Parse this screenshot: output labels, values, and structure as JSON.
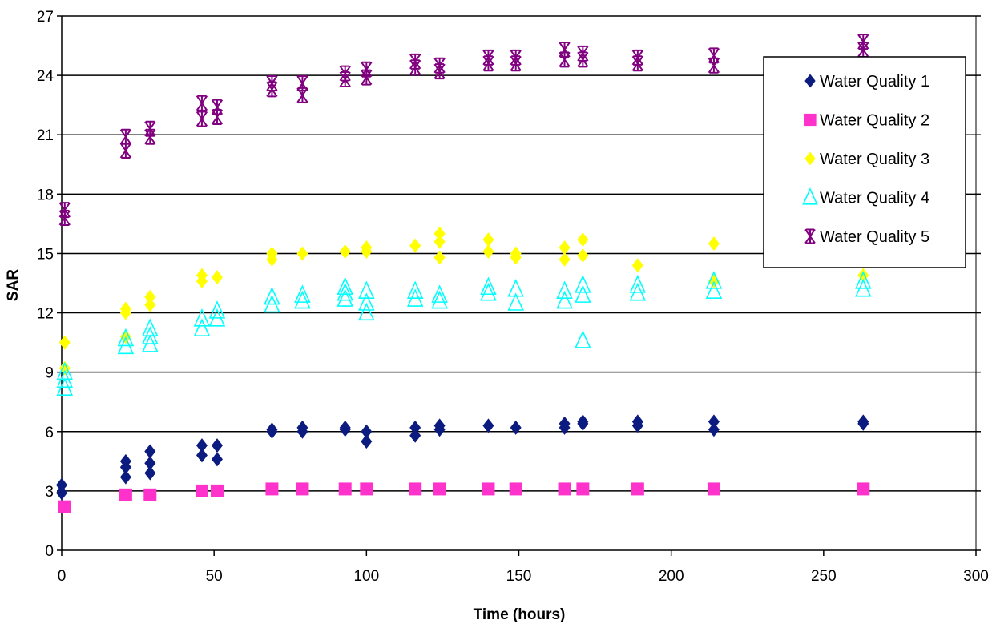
{
  "chart_data": {
    "type": "scatter",
    "title": "",
    "xlabel": "Time (hours)",
    "ylabel": "SAR",
    "xlim": [
      0,
      300
    ],
    "ylim": [
      0,
      27
    ],
    "xticks": [
      0,
      50,
      100,
      150,
      200,
      250,
      300
    ],
    "yticks": [
      0,
      3,
      6,
      9,
      12,
      15,
      18,
      21,
      24,
      27
    ],
    "grid": "horizontal",
    "legend_position": "top-right",
    "series": [
      {
        "name": "Water Quality 1",
        "marker": "diamond",
        "color": "#0B1B7F",
        "points": [
          [
            0,
            3.3
          ],
          [
            0,
            2.9
          ],
          [
            21,
            4.5
          ],
          [
            21,
            4.2
          ],
          [
            21,
            3.7
          ],
          [
            29,
            5.0
          ],
          [
            29,
            4.4
          ],
          [
            29,
            3.9
          ],
          [
            46,
            5.3
          ],
          [
            46,
            4.8
          ],
          [
            51,
            5.3
          ],
          [
            51,
            4.6
          ],
          [
            69,
            6.1
          ],
          [
            69,
            6.0
          ],
          [
            79,
            6.2
          ],
          [
            79,
            6.0
          ],
          [
            93,
            6.2
          ],
          [
            93,
            6.1
          ],
          [
            100,
            6.0
          ],
          [
            100,
            5.5
          ],
          [
            116,
            6.2
          ],
          [
            116,
            5.8
          ],
          [
            124,
            6.3
          ],
          [
            124,
            6.1
          ],
          [
            140,
            6.3
          ],
          [
            149,
            6.2
          ],
          [
            165,
            6.4
          ],
          [
            165,
            6.2
          ],
          [
            171,
            6.5
          ],
          [
            171,
            6.4
          ],
          [
            189,
            6.5
          ],
          [
            189,
            6.3
          ],
          [
            214,
            6.5
          ],
          [
            214,
            6.1
          ],
          [
            263,
            6.5
          ],
          [
            263,
            6.4
          ]
        ]
      },
      {
        "name": "Water Quality 2",
        "marker": "square",
        "color": "#FF33CC",
        "points": [
          [
            1,
            2.2
          ],
          [
            21,
            2.8
          ],
          [
            29,
            2.8
          ],
          [
            46,
            3.0
          ],
          [
            51,
            3.0
          ],
          [
            69,
            3.1
          ],
          [
            79,
            3.1
          ],
          [
            93,
            3.1
          ],
          [
            100,
            3.1
          ],
          [
            116,
            3.1
          ],
          [
            124,
            3.1
          ],
          [
            140,
            3.1
          ],
          [
            149,
            3.1
          ],
          [
            165,
            3.1
          ],
          [
            171,
            3.1
          ],
          [
            189,
            3.1
          ],
          [
            214,
            3.1
          ],
          [
            263,
            3.1
          ]
        ]
      },
      {
        "name": "Water Quality 3",
        "marker": "diamond",
        "color": "#FFFF00",
        "points": [
          [
            1,
            10.5
          ],
          [
            1,
            9.2
          ],
          [
            21,
            12.2
          ],
          [
            21,
            12.0
          ],
          [
            21,
            10.8
          ],
          [
            29,
            12.8
          ],
          [
            29,
            12.4
          ],
          [
            46,
            13.9
          ],
          [
            46,
            13.6
          ],
          [
            51,
            13.8
          ],
          [
            69,
            15.0
          ],
          [
            69,
            14.7
          ],
          [
            79,
            15.0
          ],
          [
            93,
            15.1
          ],
          [
            100,
            15.3
          ],
          [
            100,
            15.1
          ],
          [
            116,
            15.4
          ],
          [
            124,
            16.0
          ],
          [
            124,
            15.6
          ],
          [
            124,
            14.8
          ],
          [
            140,
            15.7
          ],
          [
            140,
            15.1
          ],
          [
            149,
            15.0
          ],
          [
            149,
            14.8
          ],
          [
            165,
            15.3
          ],
          [
            165,
            14.7
          ],
          [
            171,
            15.7
          ],
          [
            171,
            14.9
          ],
          [
            189,
            14.4
          ],
          [
            214,
            15.5
          ],
          [
            214,
            13.6
          ],
          [
            263,
            13.9
          ]
        ]
      },
      {
        "name": "Water Quality 4",
        "marker": "triangle",
        "color": "#00FFFF",
        "points": [
          [
            1,
            9.0
          ],
          [
            1,
            8.6
          ],
          [
            1,
            8.2
          ],
          [
            21,
            10.7
          ],
          [
            21,
            10.3
          ],
          [
            29,
            11.2
          ],
          [
            29,
            10.8
          ],
          [
            29,
            10.4
          ],
          [
            46,
            11.7
          ],
          [
            46,
            11.2
          ],
          [
            51,
            12.1
          ],
          [
            51,
            11.7
          ],
          [
            69,
            12.8
          ],
          [
            69,
            12.4
          ],
          [
            79,
            12.9
          ],
          [
            79,
            12.6
          ],
          [
            93,
            13.3
          ],
          [
            93,
            13.0
          ],
          [
            93,
            12.7
          ],
          [
            100,
            13.1
          ],
          [
            100,
            12.5
          ],
          [
            100,
            12.0
          ],
          [
            116,
            13.1
          ],
          [
            116,
            12.7
          ],
          [
            124,
            12.9
          ],
          [
            124,
            12.6
          ],
          [
            140,
            13.3
          ],
          [
            140,
            13.0
          ],
          [
            149,
            13.2
          ],
          [
            149,
            12.5
          ],
          [
            165,
            13.1
          ],
          [
            165,
            12.6
          ],
          [
            171,
            13.4
          ],
          [
            171,
            12.9
          ],
          [
            171,
            10.6
          ],
          [
            189,
            13.4
          ],
          [
            189,
            13.0
          ],
          [
            214,
            13.6
          ],
          [
            214,
            13.1
          ],
          [
            263,
            13.6
          ],
          [
            263,
            13.2
          ]
        ]
      },
      {
        "name": "Water Quality 5",
        "marker": "asterisk",
        "color": "#800080",
        "points": [
          [
            1,
            17.2
          ],
          [
            1,
            16.8
          ],
          [
            21,
            20.9
          ],
          [
            21,
            20.2
          ],
          [
            29,
            21.3
          ],
          [
            29,
            20.9
          ],
          [
            46,
            22.6
          ],
          [
            46,
            21.8
          ],
          [
            51,
            22.4
          ],
          [
            51,
            21.9
          ],
          [
            69,
            23.6
          ],
          [
            69,
            23.3
          ],
          [
            79,
            23.6
          ],
          [
            79,
            23.0
          ],
          [
            93,
            24.1
          ],
          [
            93,
            23.8
          ],
          [
            100,
            24.3
          ],
          [
            100,
            23.9
          ],
          [
            116,
            24.7
          ],
          [
            116,
            24.4
          ],
          [
            124,
            24.5
          ],
          [
            124,
            24.2
          ],
          [
            140,
            24.9
          ],
          [
            140,
            24.6
          ],
          [
            149,
            24.9
          ],
          [
            149,
            24.6
          ],
          [
            165,
            25.3
          ],
          [
            165,
            24.8
          ],
          [
            171,
            25.1
          ],
          [
            171,
            24.8
          ],
          [
            189,
            24.9
          ],
          [
            189,
            24.6
          ],
          [
            214,
            25.0
          ],
          [
            214,
            24.5
          ],
          [
            263,
            25.7
          ],
          [
            263,
            25.3
          ]
        ]
      }
    ]
  }
}
